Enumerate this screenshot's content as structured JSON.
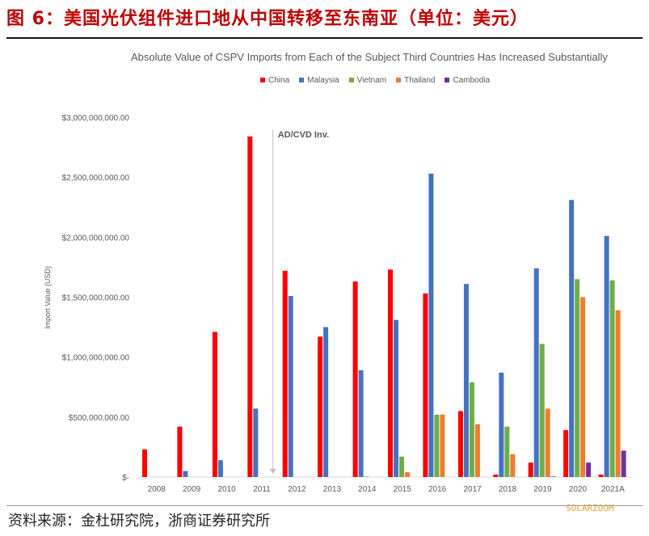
{
  "figure": {
    "title": "图 6：美国光伏组件进口地从中国转移至东南亚（单位：美元）",
    "source": "资料来源：金杜研究院，浙商证券研究所",
    "watermark": "SOLARZOOM"
  },
  "chart_data": {
    "type": "bar",
    "title": "Absolute Value of CSPV Imports from Each of the Subject Third Countries Has Increased Substantially",
    "ylabel": "Import Value (USD)",
    "xlabel": "",
    "ylim": [
      0,
      3000000000
    ],
    "yticks": [
      0,
      500000000,
      1000000000,
      1500000000,
      2000000000,
      2500000000,
      3000000000
    ],
    "ytick_labels": [
      "$-",
      "$500,000,000.00",
      "$1,000,000,000.00",
      "$1,500,000,000.00",
      "$2,000,000,000.00",
      "$2,500,000,000.00",
      "$3,000,000,000.00"
    ],
    "grid": false,
    "legend_position": "top",
    "annotation": {
      "label": "AD/CVD Inv.",
      "between": [
        "2011",
        "2012"
      ]
    },
    "categories": [
      "2008",
      "2009",
      "2010",
      "2011",
      "2012",
      "2013",
      "2014",
      "2015",
      "2016",
      "2017",
      "2018",
      "2019",
      "2020",
      "2021A"
    ],
    "series": [
      {
        "name": "China",
        "color": "#ff0000",
        "values": [
          230000000,
          420000000,
          1210000000,
          2840000000,
          1720000000,
          1170000000,
          1630000000,
          1730000000,
          1530000000,
          550000000,
          20000000,
          120000000,
          390000000,
          20000000
        ]
      },
      {
        "name": "Malaysia",
        "color": "#4472c4",
        "values": [
          0,
          50000000,
          140000000,
          570000000,
          1510000000,
          1250000000,
          890000000,
          1310000000,
          2530000000,
          1610000000,
          870000000,
          1740000000,
          2310000000,
          2010000000
        ]
      },
      {
        "name": "Vietnam",
        "color": "#70ad47",
        "values": [
          0,
          0,
          0,
          0,
          0,
          0,
          5000000,
          170000000,
          520000000,
          790000000,
          420000000,
          1110000000,
          1650000000,
          1640000000
        ]
      },
      {
        "name": "Thailand",
        "color": "#ed7d31",
        "values": [
          0,
          0,
          0,
          0,
          0,
          0,
          0,
          40000000,
          520000000,
          440000000,
          190000000,
          570000000,
          1500000000,
          1390000000
        ]
      },
      {
        "name": "Cambodia",
        "color": "#7030a0",
        "values": [
          0,
          0,
          0,
          0,
          0,
          0,
          0,
          0,
          0,
          0,
          0,
          5000000,
          120000000,
          220000000
        ]
      }
    ]
  }
}
